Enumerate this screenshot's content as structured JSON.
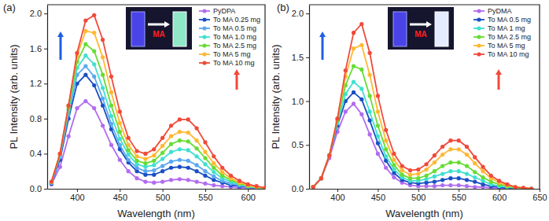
{
  "chart_data": [
    {
      "type": "line",
      "title": "(a)",
      "x_label": "Wavelength (nm)",
      "y_label": "PL Intensity (arb. units)",
      "annotations": [
        "MA"
      ],
      "legend": "upper right",
      "grid": false,
      "marker": "circle",
      "line_style": "solid",
      "xlim": [
        365,
        620
      ],
      "xticks": [
        400,
        450,
        500,
        550,
        600
      ],
      "ylim": [
        0,
        2.1
      ],
      "yticks": [
        {
          "value": 0,
          "label": "0.0"
        },
        0.4,
        0.8,
        1.2,
        1.6,
        {
          "value": 2,
          "label": "2.0"
        }
      ],
      "x": [
        370,
        380,
        390,
        400,
        410,
        420,
        430,
        440,
        450,
        460,
        470,
        480,
        490,
        500,
        510,
        520,
        530,
        540,
        550,
        560,
        570,
        580,
        590,
        600,
        610,
        620
      ],
      "series": [
        {
          "name": "PyDPA",
          "color": "#b26cf0",
          "values": [
            0.05,
            0.25,
            0.6,
            0.92,
            1.0,
            0.92,
            0.72,
            0.5,
            0.33,
            0.2,
            0.12,
            0.08,
            0.07,
            0.08,
            0.1,
            0.11,
            0.1,
            0.08,
            0.06,
            0.04,
            0.03,
            0.02,
            0.01,
            0.01,
            0,
            0
          ]
        },
        {
          "name": "To MA 0.25 mg",
          "color": "#1a4fc4",
          "values": [
            0.06,
            0.33,
            0.8,
            1.2,
            1.3,
            1.18,
            0.95,
            0.68,
            0.45,
            0.3,
            0.2,
            0.16,
            0.16,
            0.2,
            0.24,
            0.25,
            0.24,
            0.2,
            0.15,
            0.1,
            0.07,
            0.04,
            0.03,
            0.02,
            0.01,
            0
          ]
        },
        {
          "name": "To MA 0.5 mg",
          "color": "#5aa8f0",
          "values": [
            0.07,
            0.36,
            0.85,
            1.3,
            1.4,
            1.28,
            1.03,
            0.74,
            0.5,
            0.33,
            0.24,
            0.2,
            0.21,
            0.26,
            0.31,
            0.33,
            0.32,
            0.27,
            0.2,
            0.14,
            0.09,
            0.06,
            0.04,
            0.02,
            0.01,
            0
          ]
        },
        {
          "name": "To MA 1.0 mg",
          "color": "#40e0d0",
          "values": [
            0.07,
            0.38,
            0.9,
            1.38,
            1.52,
            1.42,
            1.15,
            0.83,
            0.57,
            0.39,
            0.28,
            0.25,
            0.27,
            0.34,
            0.42,
            0.45,
            0.44,
            0.37,
            0.28,
            0.19,
            0.12,
            0.08,
            0.05,
            0.03,
            0.01,
            0
          ]
        },
        {
          "name": "To MA 2.5 mg",
          "color": "#66dd33",
          "values": [
            0.08,
            0.4,
            0.92,
            1.45,
            1.65,
            1.57,
            1.3,
            0.95,
            0.65,
            0.44,
            0.32,
            0.29,
            0.32,
            0.41,
            0.51,
            0.55,
            0.54,
            0.46,
            0.35,
            0.24,
            0.15,
            0.1,
            0.06,
            0.03,
            0.02,
            0
          ]
        },
        {
          "name": "To MA 5 mg",
          "color": "#ffb833",
          "values": [
            0.08,
            0.4,
            0.95,
            1.52,
            1.8,
            1.78,
            1.5,
            1.1,
            0.75,
            0.5,
            0.37,
            0.34,
            0.38,
            0.49,
            0.6,
            0.65,
            0.64,
            0.55,
            0.42,
            0.29,
            0.19,
            0.12,
            0.07,
            0.04,
            0.02,
            0.01
          ]
        },
        {
          "name": "To MA 10 mg",
          "color": "#f04a3a",
          "values": [
            0.08,
            0.4,
            0.95,
            1.55,
            1.92,
            1.98,
            1.7,
            1.28,
            0.88,
            0.58,
            0.43,
            0.4,
            0.45,
            0.58,
            0.72,
            0.79,
            0.79,
            0.69,
            0.53,
            0.37,
            0.24,
            0.15,
            0.09,
            0.05,
            0.03,
            0.01
          ]
        }
      ]
    },
    {
      "type": "line",
      "title": "(b)",
      "x_label": "Wavelength (nm)",
      "y_label": "PL Intensity (arb. units)",
      "annotations": [
        "MA"
      ],
      "legend": "upper right",
      "grid": false,
      "marker": "circle",
      "line_style": "solid",
      "xlim": [
        365,
        650
      ],
      "xticks": [
        400,
        450,
        500,
        550,
        600,
        650
      ],
      "ylim": [
        0,
        2.1
      ],
      "yticks": [
        {
          "value": 0,
          "label": "0.0"
        },
        0.5,
        {
          "value": 1,
          "label": "1.0"
        },
        1.5,
        {
          "value": 2,
          "label": "2.0"
        }
      ],
      "x": [
        370,
        380,
        390,
        400,
        410,
        420,
        430,
        440,
        450,
        460,
        470,
        480,
        490,
        500,
        510,
        520,
        530,
        540,
        550,
        560,
        570,
        580,
        590,
        600,
        610,
        620,
        630,
        640
      ],
      "series": [
        {
          "name": "PyDMA",
          "color": "#b26cf0",
          "values": [
            0.02,
            0.12,
            0.35,
            0.65,
            0.88,
            0.97,
            0.85,
            0.62,
            0.4,
            0.24,
            0.13,
            0.07,
            0.04,
            0.03,
            0.03,
            0.03,
            0.04,
            0.04,
            0.04,
            0.03,
            0.02,
            0.02,
            0.01,
            0.01,
            0,
            0,
            0,
            0
          ]
        },
        {
          "name": "To MA 0.5 mg",
          "color": "#1a4fc4",
          "values": [
            0.02,
            0.12,
            0.38,
            0.72,
            1.0,
            1.1,
            1.02,
            0.78,
            0.52,
            0.32,
            0.18,
            0.1,
            0.07,
            0.06,
            0.07,
            0.08,
            0.1,
            0.12,
            0.12,
            0.1,
            0.08,
            0.05,
            0.03,
            0.02,
            0.01,
            0.01,
            0,
            0
          ]
        },
        {
          "name": "To MA 1 mg",
          "color": "#40e0d0",
          "values": [
            0.02,
            0.12,
            0.38,
            0.75,
            1.08,
            1.22,
            1.14,
            0.88,
            0.6,
            0.37,
            0.22,
            0.13,
            0.09,
            0.09,
            0.11,
            0.14,
            0.17,
            0.2,
            0.2,
            0.17,
            0.13,
            0.09,
            0.05,
            0.03,
            0.02,
            0.01,
            0,
            0
          ]
        },
        {
          "name": "To MA 2.5 mg",
          "color": "#66dd33",
          "values": [
            0.02,
            0.12,
            0.38,
            0.78,
            1.18,
            1.4,
            1.36,
            1.06,
            0.72,
            0.45,
            0.27,
            0.16,
            0.12,
            0.12,
            0.15,
            0.2,
            0.26,
            0.3,
            0.3,
            0.26,
            0.19,
            0.13,
            0.08,
            0.05,
            0.03,
            0.01,
            0.01,
            0
          ]
        },
        {
          "name": "To MA 5 mg",
          "color": "#ffb833",
          "values": [
            0.02,
            0.12,
            0.38,
            0.8,
            1.28,
            1.6,
            1.64,
            1.3,
            0.88,
            0.55,
            0.33,
            0.21,
            0.16,
            0.17,
            0.22,
            0.3,
            0.39,
            0.45,
            0.45,
            0.39,
            0.29,
            0.2,
            0.12,
            0.07,
            0.04,
            0.02,
            0.01,
            0
          ]
        },
        {
          "name": "To MA 10 mg",
          "color": "#f04a3a",
          "values": [
            0.02,
            0.12,
            0.38,
            0.8,
            1.35,
            1.78,
            1.88,
            1.55,
            1.06,
            0.67,
            0.4,
            0.26,
            0.21,
            0.22,
            0.28,
            0.38,
            0.48,
            0.55,
            0.55,
            0.48,
            0.36,
            0.25,
            0.15,
            0.09,
            0.05,
            0.02,
            0.01,
            0
          ]
        }
      ]
    }
  ]
}
